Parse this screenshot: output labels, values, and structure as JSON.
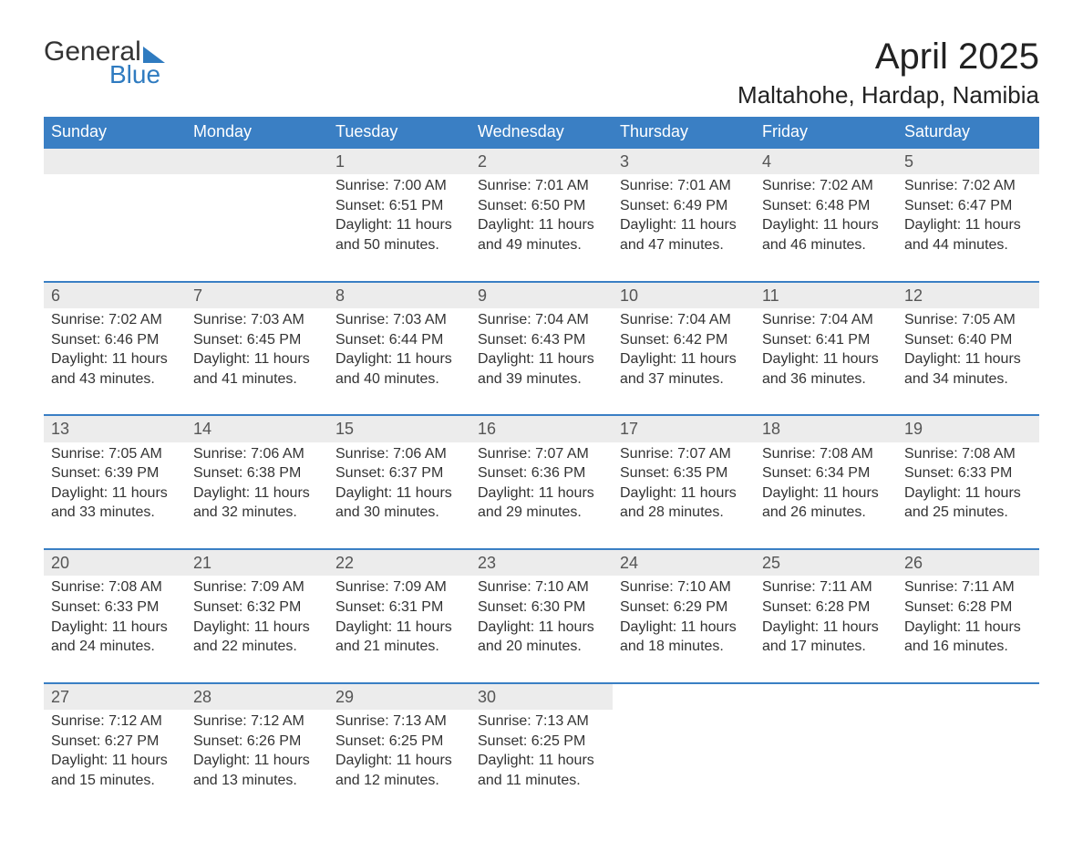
{
  "brand": {
    "word1": "General",
    "word2": "Blue",
    "accent": "#2f7bc0"
  },
  "title": "April 2025",
  "location": "Maltahohe, Hardap, Namibia",
  "header_bg": "#3a7fc4",
  "daynum_bg": "#ececec",
  "text_color": "#333333",
  "font_family": "Arial",
  "weekdays": [
    "Sunday",
    "Monday",
    "Tuesday",
    "Wednesday",
    "Thursday",
    "Friday",
    "Saturday"
  ],
  "weeks": [
    [
      null,
      null,
      {
        "n": "1",
        "sr": "Sunrise: 7:00 AM",
        "ss": "Sunset: 6:51 PM",
        "d1": "Daylight: 11 hours",
        "d2": "and 50 minutes."
      },
      {
        "n": "2",
        "sr": "Sunrise: 7:01 AM",
        "ss": "Sunset: 6:50 PM",
        "d1": "Daylight: 11 hours",
        "d2": "and 49 minutes."
      },
      {
        "n": "3",
        "sr": "Sunrise: 7:01 AM",
        "ss": "Sunset: 6:49 PM",
        "d1": "Daylight: 11 hours",
        "d2": "and 47 minutes."
      },
      {
        "n": "4",
        "sr": "Sunrise: 7:02 AM",
        "ss": "Sunset: 6:48 PM",
        "d1": "Daylight: 11 hours",
        "d2": "and 46 minutes."
      },
      {
        "n": "5",
        "sr": "Sunrise: 7:02 AM",
        "ss": "Sunset: 6:47 PM",
        "d1": "Daylight: 11 hours",
        "d2": "and 44 minutes."
      }
    ],
    [
      {
        "n": "6",
        "sr": "Sunrise: 7:02 AM",
        "ss": "Sunset: 6:46 PM",
        "d1": "Daylight: 11 hours",
        "d2": "and 43 minutes."
      },
      {
        "n": "7",
        "sr": "Sunrise: 7:03 AM",
        "ss": "Sunset: 6:45 PM",
        "d1": "Daylight: 11 hours",
        "d2": "and 41 minutes."
      },
      {
        "n": "8",
        "sr": "Sunrise: 7:03 AM",
        "ss": "Sunset: 6:44 PM",
        "d1": "Daylight: 11 hours",
        "d2": "and 40 minutes."
      },
      {
        "n": "9",
        "sr": "Sunrise: 7:04 AM",
        "ss": "Sunset: 6:43 PM",
        "d1": "Daylight: 11 hours",
        "d2": "and 39 minutes."
      },
      {
        "n": "10",
        "sr": "Sunrise: 7:04 AM",
        "ss": "Sunset: 6:42 PM",
        "d1": "Daylight: 11 hours",
        "d2": "and 37 minutes."
      },
      {
        "n": "11",
        "sr": "Sunrise: 7:04 AM",
        "ss": "Sunset: 6:41 PM",
        "d1": "Daylight: 11 hours",
        "d2": "and 36 minutes."
      },
      {
        "n": "12",
        "sr": "Sunrise: 7:05 AM",
        "ss": "Sunset: 6:40 PM",
        "d1": "Daylight: 11 hours",
        "d2": "and 34 minutes."
      }
    ],
    [
      {
        "n": "13",
        "sr": "Sunrise: 7:05 AM",
        "ss": "Sunset: 6:39 PM",
        "d1": "Daylight: 11 hours",
        "d2": "and 33 minutes."
      },
      {
        "n": "14",
        "sr": "Sunrise: 7:06 AM",
        "ss": "Sunset: 6:38 PM",
        "d1": "Daylight: 11 hours",
        "d2": "and 32 minutes."
      },
      {
        "n": "15",
        "sr": "Sunrise: 7:06 AM",
        "ss": "Sunset: 6:37 PM",
        "d1": "Daylight: 11 hours",
        "d2": "and 30 minutes."
      },
      {
        "n": "16",
        "sr": "Sunrise: 7:07 AM",
        "ss": "Sunset: 6:36 PM",
        "d1": "Daylight: 11 hours",
        "d2": "and 29 minutes."
      },
      {
        "n": "17",
        "sr": "Sunrise: 7:07 AM",
        "ss": "Sunset: 6:35 PM",
        "d1": "Daylight: 11 hours",
        "d2": "and 28 minutes."
      },
      {
        "n": "18",
        "sr": "Sunrise: 7:08 AM",
        "ss": "Sunset: 6:34 PM",
        "d1": "Daylight: 11 hours",
        "d2": "and 26 minutes."
      },
      {
        "n": "19",
        "sr": "Sunrise: 7:08 AM",
        "ss": "Sunset: 6:33 PM",
        "d1": "Daylight: 11 hours",
        "d2": "and 25 minutes."
      }
    ],
    [
      {
        "n": "20",
        "sr": "Sunrise: 7:08 AM",
        "ss": "Sunset: 6:33 PM",
        "d1": "Daylight: 11 hours",
        "d2": "and 24 minutes."
      },
      {
        "n": "21",
        "sr": "Sunrise: 7:09 AM",
        "ss": "Sunset: 6:32 PM",
        "d1": "Daylight: 11 hours",
        "d2": "and 22 minutes."
      },
      {
        "n": "22",
        "sr": "Sunrise: 7:09 AM",
        "ss": "Sunset: 6:31 PM",
        "d1": "Daylight: 11 hours",
        "d2": "and 21 minutes."
      },
      {
        "n": "23",
        "sr": "Sunrise: 7:10 AM",
        "ss": "Sunset: 6:30 PM",
        "d1": "Daylight: 11 hours",
        "d2": "and 20 minutes."
      },
      {
        "n": "24",
        "sr": "Sunrise: 7:10 AM",
        "ss": "Sunset: 6:29 PM",
        "d1": "Daylight: 11 hours",
        "d2": "and 18 minutes."
      },
      {
        "n": "25",
        "sr": "Sunrise: 7:11 AM",
        "ss": "Sunset: 6:28 PM",
        "d1": "Daylight: 11 hours",
        "d2": "and 17 minutes."
      },
      {
        "n": "26",
        "sr": "Sunrise: 7:11 AM",
        "ss": "Sunset: 6:28 PM",
        "d1": "Daylight: 11 hours",
        "d2": "and 16 minutes."
      }
    ],
    [
      {
        "n": "27",
        "sr": "Sunrise: 7:12 AM",
        "ss": "Sunset: 6:27 PM",
        "d1": "Daylight: 11 hours",
        "d2": "and 15 minutes."
      },
      {
        "n": "28",
        "sr": "Sunrise: 7:12 AM",
        "ss": "Sunset: 6:26 PM",
        "d1": "Daylight: 11 hours",
        "d2": "and 13 minutes."
      },
      {
        "n": "29",
        "sr": "Sunrise: 7:13 AM",
        "ss": "Sunset: 6:25 PM",
        "d1": "Daylight: 11 hours",
        "d2": "and 12 minutes."
      },
      {
        "n": "30",
        "sr": "Sunrise: 7:13 AM",
        "ss": "Sunset: 6:25 PM",
        "d1": "Daylight: 11 hours",
        "d2": "and 11 minutes."
      },
      null,
      null,
      null
    ]
  ]
}
